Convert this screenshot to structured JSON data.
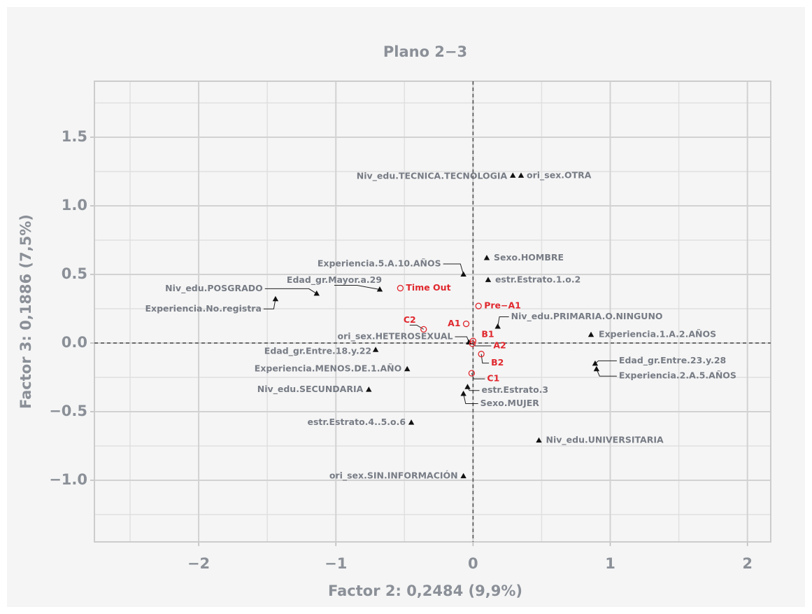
{
  "chart_data": {
    "type": "scatter",
    "title": "Plano 2−3",
    "x_label": "Factor 2: 0,2484 (9,9%)",
    "y_label": "Factor 3: 0,1886 (7,5%)",
    "xlim": [
      -2.76,
      2.17
    ],
    "ylim": [
      -1.449,
      1.908
    ],
    "xticks": [
      {
        "value": -2,
        "label": "−2"
      },
      {
        "value": -1,
        "label": "−1"
      },
      0,
      1,
      2
    ],
    "yticks": [
      1.5,
      {
        "value": 1.0,
        "label": "1.0"
      },
      0.5,
      {
        "value": 0,
        "label": "0.0"
      },
      {
        "value": -0.5,
        "label": "−0.5"
      },
      {
        "value": -1.0,
        "label": "−1.0"
      }
    ],
    "minor_xticks": [
      -2.5,
      -1.5,
      -0.5,
      0.5,
      1.5
    ],
    "minor_yticks": [
      1.75,
      1.25,
      0.75,
      0.25,
      -0.25,
      -0.75,
      -1.25
    ],
    "grid": true,
    "hlines": [
      0
    ],
    "vlines": [
      0
    ],
    "series": [
      {
        "color": "#111111",
        "marker": "triangle",
        "points": [
          {
            "label": "Niv_edu.TECNICA.TECNOLOGIA",
            "x": 0.29,
            "y": 1.22
          },
          {
            "label": "ori_sex.OTRA",
            "x": 0.35,
            "y": 1.22
          },
          {
            "label": "Sexo.HOMBRE",
            "x": 0.1,
            "y": 0.62
          },
          {
            "label": "Experiencia.5.A.10.AÑOS",
            "x": -0.07,
            "y": 0.5
          },
          {
            "label": "estr.Estrato.1.o.2",
            "x": 0.11,
            "y": 0.46
          },
          {
            "label": "Edad_gr.Mayor.a.29",
            "x": -0.68,
            "y": 0.39
          },
          {
            "label": "Niv_edu.POSGRADO",
            "x": -1.14,
            "y": 0.36
          },
          {
            "label": "Experiencia.No.registra",
            "x": -1.44,
            "y": 0.32
          },
          {
            "label": "Niv_edu.PRIMARIA.O.NINGUNO",
            "x": 0.18,
            "y": 0.12
          },
          {
            "label": "Experiencia.1.A.2.AÑOS",
            "x": 0.86,
            "y": 0.06
          },
          {
            "label": "ori_sex.HETEROSEXUAL",
            "x": -0.03,
            "y": 0.005
          },
          {
            "label": "Edad_gr.Entre.18.y.22",
            "x": -0.71,
            "y": -0.05
          },
          {
            "label": "Experiencia.MENOS.DE.1.AÑO",
            "x": -0.48,
            "y": -0.19
          },
          {
            "label": "Edad_gr.Entre.23.y.28",
            "x": 0.89,
            "y": -0.15
          },
          {
            "label": "Experiencia.2.A.5.AÑOS",
            "x": 0.9,
            "y": -0.19
          },
          {
            "label": "estr.Estrato.3",
            "x": -0.04,
            "y": -0.32
          },
          {
            "label": "Niv_edu.SECUNDARIA",
            "x": -0.76,
            "y": -0.34
          },
          {
            "label": "Sexo.MUJER",
            "x": -0.07,
            "y": -0.37
          },
          {
            "label": "estr.Estrato.4..5.o.6",
            "x": -0.45,
            "y": -0.58
          },
          {
            "label": "Niv_edu.UNIVERSITARIA",
            "x": 0.48,
            "y": -0.71
          },
          {
            "label": "ori_sex.SIN.INFORMACIÓN",
            "x": -0.07,
            "y": -0.97
          }
        ]
      },
      {
        "color": "#e0282e",
        "marker": "circle",
        "points": [
          {
            "label": "Time Out",
            "x": -0.53,
            "y": 0.4
          },
          {
            "label": "Pre−A1",
            "x": 0.04,
            "y": 0.27
          },
          {
            "label": "C2",
            "x": -0.36,
            "y": 0.1
          },
          {
            "label": "A1",
            "x": -0.05,
            "y": 0.14
          },
          {
            "label": "B1",
            "x": 0.0,
            "y": 0.015
          },
          {
            "label": "A2",
            "x": -0.005,
            "y": -0.005
          },
          {
            "label": "B2",
            "x": 0.06,
            "y": -0.08
          },
          {
            "label": "C1",
            "x": -0.01,
            "y": -0.22
          }
        ]
      }
    ]
  }
}
